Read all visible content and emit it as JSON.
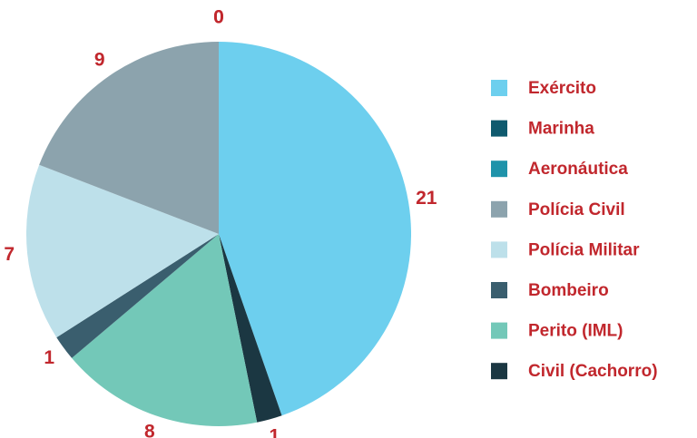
{
  "chart_data": {
    "type": "pie",
    "categories": [
      "Exército",
      "Civil (Cachorro)",
      "Perito (IML)",
      "Bombeiro",
      "Polícia Militar",
      "Polícia Civil",
      "Marinha",
      "Aeronáutica"
    ],
    "values": [
      21,
      1,
      8,
      1,
      7,
      9,
      0,
      0
    ],
    "colors": [
      "#6dcfee",
      "#1b3742",
      "#73c8b8",
      "#3a5e6e",
      "#bde0ea",
      "#8ca3ad",
      "#0f5a6e",
      "#1f93aa"
    ],
    "legend": "right"
  }
}
